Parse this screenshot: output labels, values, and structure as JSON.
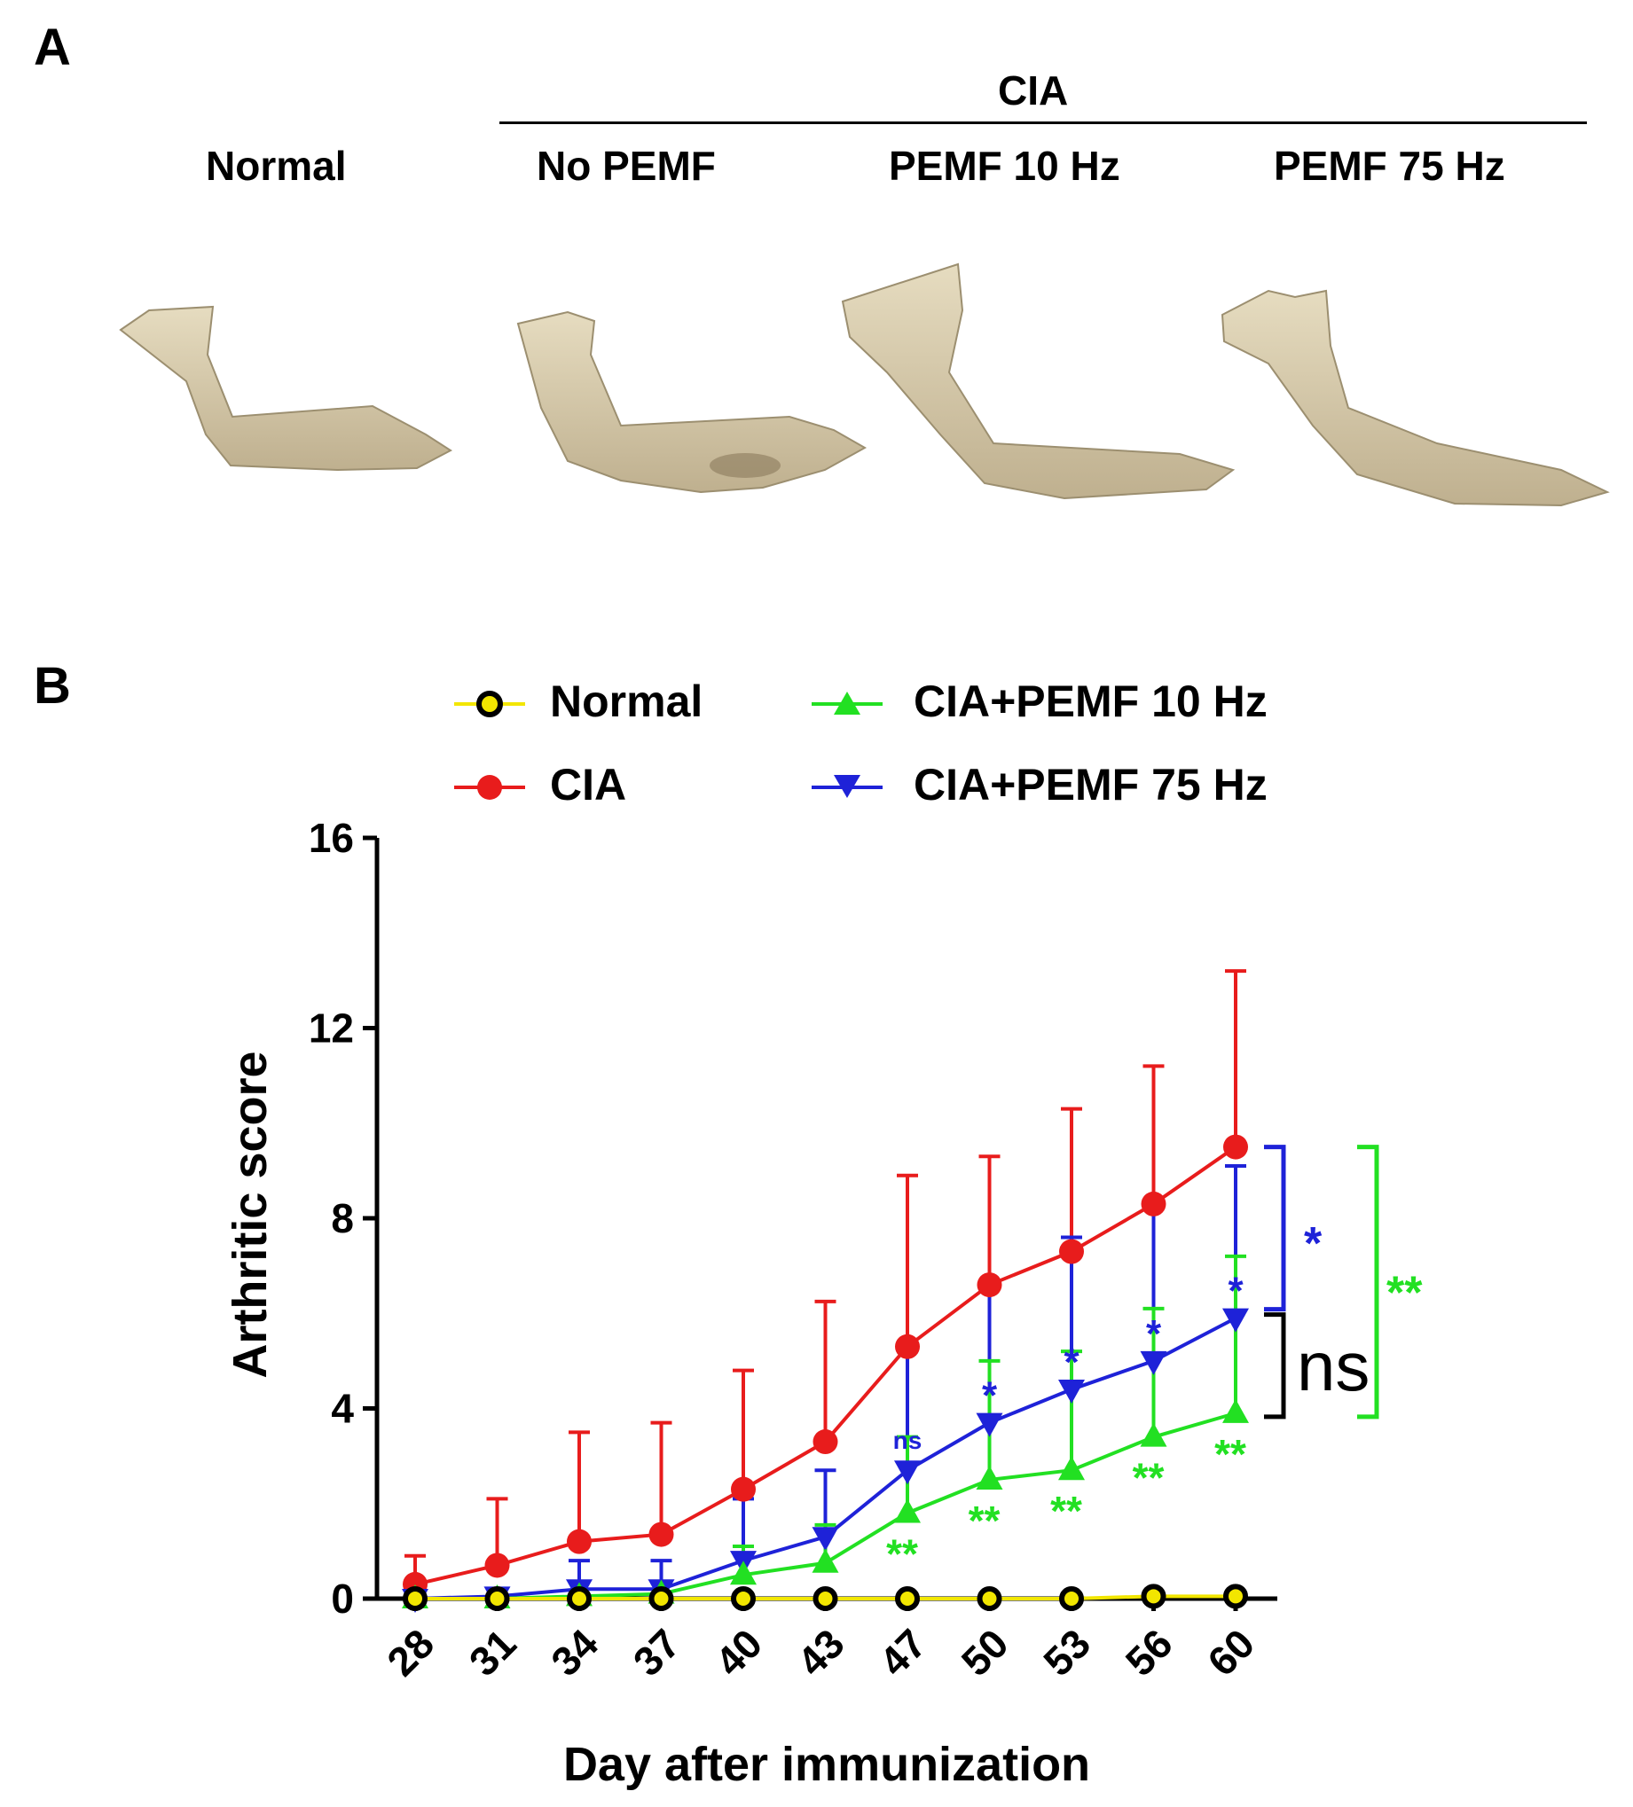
{
  "panel_a": {
    "letter": "A",
    "group_header": "CIA",
    "groups": [
      "Normal",
      "No PEMF",
      "PEMF 10 Hz",
      "PEMF 75 Hz"
    ]
  },
  "panel_b": {
    "letter": "B"
  },
  "legend": [
    {
      "label": "Normal",
      "color": "#f2e600",
      "marker": "circle-open"
    },
    {
      "label": "CIA",
      "color": "#e81c1c",
      "marker": "circle"
    },
    {
      "label": "CIA+PEMF 10 Hz",
      "color": "#22e022",
      "marker": "triangle-up"
    },
    {
      "label": "CIA+PEMF 75 Hz",
      "color": "#1e22d8",
      "marker": "triangle-down"
    }
  ],
  "chart_data": {
    "type": "line",
    "xlabel": "Day after immunization",
    "ylabel": "Arthritic score",
    "categories": [
      "28",
      "31",
      "34",
      "37",
      "40",
      "43",
      "47",
      "50",
      "53",
      "56",
      "60"
    ],
    "ylim": [
      0,
      16
    ],
    "yticks": [
      "0",
      "4",
      "8",
      "12",
      "16"
    ],
    "series": [
      {
        "name": "Normal",
        "color": "#f2e600",
        "values": [
          0,
          0,
          0,
          0,
          0,
          0,
          0,
          0,
          0,
          0.05,
          0.05
        ],
        "errors": [
          0,
          0,
          0,
          0,
          0,
          0,
          0,
          0,
          0,
          0,
          0
        ]
      },
      {
        "name": "CIA",
        "color": "#e81c1c",
        "values": [
          0.3,
          0.7,
          1.2,
          1.35,
          2.3,
          3.3,
          5.3,
          6.6,
          7.3,
          8.3,
          9.5
        ],
        "errors": [
          0.6,
          1.4,
          2.3,
          2.35,
          2.5,
          2.95,
          3.6,
          2.7,
          3.0,
          2.9,
          3.7
        ]
      },
      {
        "name": "CIA+PEMF 10 Hz",
        "color": "#22e022",
        "values": [
          0,
          0,
          0.05,
          0.1,
          0.5,
          0.75,
          1.8,
          2.5,
          2.7,
          3.4,
          3.9
        ],
        "errors": [
          0,
          0,
          0,
          0,
          0.6,
          0.8,
          1.6,
          2.5,
          2.5,
          2.7,
          3.3
        ]
      },
      {
        "name": "CIA+PEMF 75 Hz",
        "color": "#1e22d8",
        "values": [
          0,
          0.05,
          0.2,
          0.2,
          0.8,
          1.3,
          2.7,
          3.7,
          4.4,
          5.0,
          5.9
        ],
        "errors": [
          0,
          0,
          0.6,
          0.6,
          1.3,
          1.4,
          2.5,
          2.9,
          3.2,
          3.3,
          3.2
        ]
      }
    ],
    "annotations": {
      "pemf75_marks": [
        "",
        "",
        "",
        "",
        "",
        "",
        "ns",
        "*",
        "*",
        "*",
        "*"
      ],
      "pemf10_marks": [
        "",
        "",
        "",
        "",
        "",
        "",
        "**",
        "**",
        "**",
        "**",
        "**"
      ],
      "bracket_cia_vs_75": "*",
      "bracket_75_vs_10": "ns",
      "bracket_cia_vs_10": "**"
    }
  }
}
